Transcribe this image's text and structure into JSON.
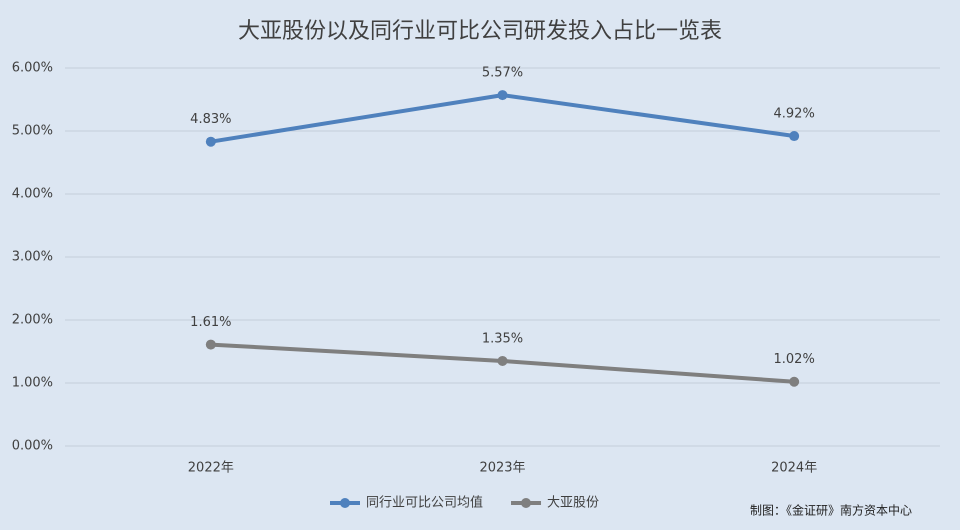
{
  "chart_data": {
    "type": "line",
    "title": "大亚股份以及同行业可比公司研发投入占比一览表",
    "categories": [
      "2022年",
      "2023年",
      "2024年"
    ],
    "series": [
      {
        "name": "同行业可比公司均值",
        "color": "#4f81bd",
        "values": [
          4.83,
          5.57,
          4.92
        ],
        "value_labels": [
          "4.83%",
          "5.57%",
          "4.92%"
        ]
      },
      {
        "name": "大亚股份",
        "color": "#7f7f7f",
        "values": [
          1.61,
          1.35,
          1.02
        ],
        "value_labels": [
          "1.61%",
          "1.35%",
          "1.02%"
        ]
      }
    ],
    "ylim": [
      0,
      6
    ],
    "yticks": [
      {
        "value": 0,
        "label": "0.00%"
      },
      {
        "value": 1,
        "label": "1.00%"
      },
      {
        "value": 2,
        "label": "2.00%"
      },
      {
        "value": 3,
        "label": "3.00%"
      },
      {
        "value": 4,
        "label": "4.00%"
      },
      {
        "value": 5,
        "label": "5.00%"
      },
      {
        "value": 6,
        "label": "6.00%"
      }
    ],
    "grid": true,
    "legend": "bottom",
    "source": "制图：《金证研》南方资本中心"
  }
}
